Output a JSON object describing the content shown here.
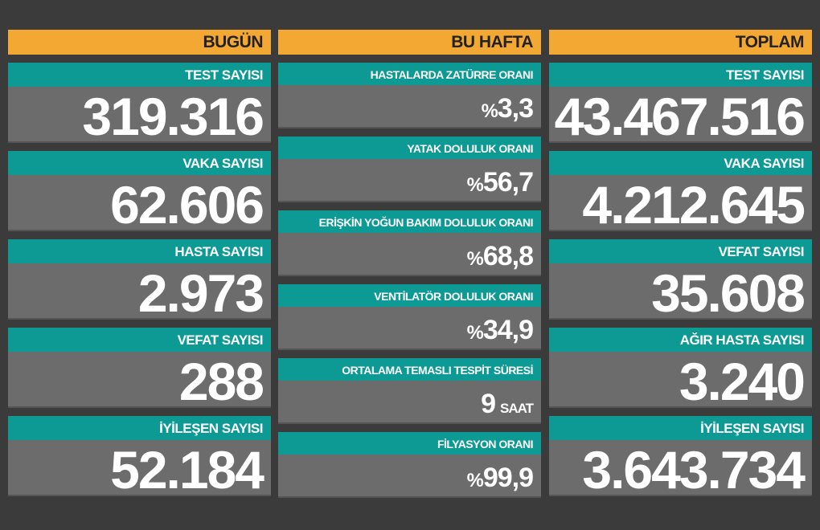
{
  "columns": [
    {
      "title": "BUGÜN",
      "items": [
        {
          "label": "TEST SAYISI",
          "value": "319.316"
        },
        {
          "label": "VAKA SAYISI",
          "value": "62.606"
        },
        {
          "label": "HASTA SAYISI",
          "value": "2.973"
        },
        {
          "label": "VEFAT SAYISI",
          "value": "288"
        },
        {
          "label": "İYİLEŞEN SAYISI",
          "value": "52.184"
        }
      ]
    },
    {
      "title": "BU HAFTA",
      "items": [
        {
          "label": "HASTALARDA ZATÜRRE ORANI",
          "prefix": "%",
          "value": "3,3"
        },
        {
          "label": "YATAK DOLULUK ORANI",
          "prefix": "%",
          "value": "56,7"
        },
        {
          "label": "ERİŞKİN YOĞUN BAKIM DOLULUK ORANI",
          "prefix": "%",
          "value": "68,8"
        },
        {
          "label": "VENTİLATÖR DOLULUK ORANI",
          "prefix": "%",
          "value": "34,9"
        },
        {
          "label": "ORTALAMA TEMASLI TESPİT SÜRESİ",
          "value": "9",
          "suffix": "SAAT"
        },
        {
          "label": "FİLYASYON ORANI",
          "prefix": "%",
          "value": "99,9"
        }
      ]
    },
    {
      "title": "TOPLAM",
      "items": [
        {
          "label": "TEST SAYISI",
          "value": "43.467.516"
        },
        {
          "label": "VAKA SAYISI",
          "value": "4.212.645"
        },
        {
          "label": "VEFAT SAYISI",
          "value": "35.608"
        },
        {
          "label": "AĞIR HASTA SAYISI",
          "value": "3.240"
        },
        {
          "label": "İYİLEŞEN SAYISI",
          "value": "3.643.734"
        }
      ]
    }
  ]
}
